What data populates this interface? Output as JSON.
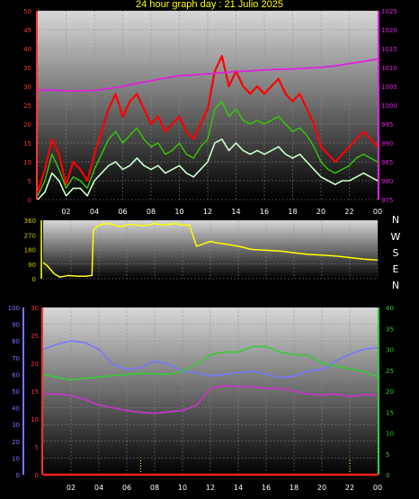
{
  "title": "24 hour graph day : 21 Julio 2025",
  "hour_labels": [
    "02",
    "04",
    "06",
    "08",
    "10",
    "12",
    "14",
    "16",
    "18",
    "20",
    "22",
    "00"
  ],
  "compass_labels": [
    "N",
    "W",
    "S",
    "E",
    "N"
  ],
  "colors": {
    "gust": "#ff0000",
    "wind_avg": "#33cc00",
    "wind": "#ccffcc",
    "pressure": "#dd22dd",
    "direction": "#ffff00",
    "humidity": "#7777ff",
    "temp": "#33cc33",
    "dewpoint": "#cc33cc",
    "rain": "#ff2222",
    "panel_bg_top": "#d8d8d8",
    "panel_bg_bottom": "#000000"
  },
  "chart_data": [
    {
      "type": "line",
      "name": "wind",
      "x": "hours 0-24",
      "ylim_left": [
        0,
        50
      ],
      "ylim_right": [
        975,
        1025
      ],
      "left_ticks": [
        "50",
        "45",
        "40",
        "35",
        "30",
        "25",
        "20",
        "15",
        "10",
        "5",
        "0"
      ],
      "right_ticks": [
        "1025",
        "1020",
        "1015",
        "1010",
        "1005",
        "1000",
        "995",
        "990",
        "985",
        "980",
        "975"
      ],
      "series": [
        {
          "color": "gust",
          "x": [
            0,
            0.5,
            1,
            1.5,
            2,
            2.5,
            3,
            3.5,
            4,
            4.5,
            5,
            5.5,
            6,
            6.5,
            7,
            7.5,
            8,
            8.5,
            9,
            9.5,
            10,
            10.5,
            11,
            11.5,
            12,
            12.5,
            13,
            13.5,
            14,
            14.5,
            15,
            15.5,
            16,
            16.5,
            17,
            17.5,
            18,
            18.5,
            19,
            19.5,
            20,
            20.5,
            21,
            21.5,
            22,
            22.5,
            23,
            23.5,
            24
          ],
          "y": [
            2,
            8,
            16,
            12,
            4,
            10,
            8,
            5,
            12,
            18,
            24,
            28,
            22,
            26,
            28,
            24,
            20,
            22,
            18,
            20,
            22,
            18,
            16,
            20,
            24,
            34,
            38,
            30,
            34,
            30,
            28,
            30,
            28,
            30,
            32,
            28,
            26,
            28,
            24,
            20,
            14,
            12,
            10,
            12,
            14,
            16,
            18,
            16,
            14
          ]
        },
        {
          "color": "wind_avg",
          "x": [
            0,
            0.5,
            1,
            1.5,
            2,
            2.5,
            3,
            3.5,
            4,
            4.5,
            5,
            5.5,
            6,
            6.5,
            7,
            7.5,
            8,
            8.5,
            9,
            9.5,
            10,
            10.5,
            11,
            11.5,
            12,
            12.5,
            13,
            13.5,
            14,
            14.5,
            15,
            15.5,
            16,
            16.5,
            17,
            17.5,
            18,
            18.5,
            19,
            19.5,
            20,
            20.5,
            21,
            21.5,
            22,
            22.5,
            23,
            23.5,
            24
          ],
          "y": [
            1,
            5,
            12,
            8,
            3,
            6,
            5,
            3,
            8,
            12,
            16,
            18,
            15,
            17,
            19,
            16,
            14,
            15,
            12,
            13,
            15,
            12,
            11,
            14,
            16,
            24,
            26,
            22,
            24,
            21,
            20,
            21,
            20,
            21,
            22,
            20,
            18,
            19,
            17,
            14,
            10,
            8,
            7,
            8,
            9,
            11,
            12,
            11,
            10
          ]
        },
        {
          "color": "wind",
          "x": [
            0,
            0.5,
            1,
            1.5,
            2,
            2.5,
            3,
            3.5,
            4,
            4.5,
            5,
            5.5,
            6,
            6.5,
            7,
            7.5,
            8,
            8.5,
            9,
            9.5,
            10,
            10.5,
            11,
            11.5,
            12,
            12.5,
            13,
            13.5,
            14,
            14.5,
            15,
            15.5,
            16,
            16.5,
            17,
            17.5,
            18,
            18.5,
            19,
            19.5,
            20,
            20.5,
            21,
            21.5,
            22,
            22.5,
            23,
            23.5,
            24
          ],
          "y": [
            0,
            2,
            7,
            5,
            1,
            3,
            3,
            1,
            5,
            7,
            9,
            10,
            8,
            9,
            11,
            9,
            8,
            9,
            7,
            8,
            9,
            7,
            6,
            8,
            10,
            15,
            16,
            13,
            15,
            13,
            12,
            13,
            12,
            13,
            14,
            12,
            11,
            12,
            10,
            8,
            6,
            5,
            4,
            5,
            5,
            6,
            7,
            6,
            5
          ]
        },
        {
          "color": "pressure",
          "x": [
            0,
            1,
            2,
            3,
            4,
            5,
            6,
            7,
            8,
            9,
            10,
            11,
            12,
            13,
            14,
            15,
            16,
            17,
            18,
            19,
            20,
            21,
            22,
            23,
            24
          ],
          "y": [
            1004,
            1004,
            1003.8,
            1003.8,
            1003.9,
            1004.4,
            1005,
            1005.8,
            1006.5,
            1007.2,
            1007.8,
            1008,
            1008.3,
            1008.6,
            1008.9,
            1009.1,
            1009.3,
            1009.5,
            1009.6,
            1009.8,
            1010,
            1010.4,
            1011,
            1011.6,
            1012.2
          ]
        }
      ]
    },
    {
      "type": "line",
      "name": "wind direction",
      "ylim": [
        0,
        360
      ],
      "left_ticks": [
        "360",
        "270",
        "180",
        "90",
        "0"
      ],
      "series": [
        {
          "color": "direction",
          "x": [
            0,
            0.3,
            0.8,
            1.2,
            1.8,
            2.5,
            3,
            3.5,
            3.6,
            4,
            4.5,
            5,
            5.5,
            6,
            6.5,
            7,
            7.5,
            8,
            8.5,
            9,
            9.5,
            10,
            10.5,
            11,
            11.5,
            12,
            12.5,
            13,
            14,
            15,
            16,
            17,
            18,
            19,
            20,
            21,
            22,
            23,
            24
          ],
          "y": [
            100,
            80,
            30,
            10,
            20,
            15,
            15,
            20,
            300,
            330,
            340,
            335,
            320,
            330,
            335,
            325,
            330,
            340,
            330,
            335,
            340,
            330,
            330,
            200,
            215,
            230,
            220,
            215,
            200,
            180,
            175,
            170,
            160,
            150,
            145,
            140,
            130,
            120,
            115
          ]
        }
      ]
    },
    {
      "type": "line",
      "name": "temperature humidity rain",
      "ylim_humidity": [
        0,
        100
      ],
      "ylim_temp": [
        0,
        30
      ],
      "ylim_right": [
        0,
        40
      ],
      "humidity_ticks": [
        "100",
        "90",
        "80",
        "70",
        "60",
        "50",
        "40",
        "30",
        "20",
        "10",
        "0"
      ],
      "temp_ticks": [
        "30",
        "25",
        "20",
        "15",
        "10",
        "5",
        "0"
      ],
      "right_ticks": [
        "40",
        "35",
        "30",
        "25",
        "20",
        "15",
        "10",
        "5",
        "0"
      ],
      "series": [
        {
          "color": "humidity",
          "x": [
            0,
            1,
            2,
            3,
            4,
            5,
            6,
            7,
            8,
            9,
            10,
            11,
            12,
            13,
            14,
            15,
            16,
            17,
            18,
            19,
            20,
            21,
            22,
            23,
            24
          ],
          "y": [
            75,
            78,
            80,
            79,
            75,
            66,
            63,
            64,
            68,
            66,
            62,
            61,
            59,
            60,
            61,
            62,
            60,
            58,
            59,
            62,
            63,
            68,
            72,
            75,
            76
          ]
        },
        {
          "color": "temp",
          "x": [
            0,
            1,
            2,
            3,
            4,
            5,
            6,
            7,
            8,
            9,
            10,
            11,
            12,
            13,
            14,
            15,
            16,
            17,
            18,
            19,
            20,
            21,
            22,
            23,
            24
          ],
          "y": [
            18,
            17.5,
            17,
            17.3,
            17.5,
            17.8,
            18,
            18.2,
            18.1,
            18,
            18.6,
            19.8,
            21.5,
            22,
            22,
            23,
            23,
            22,
            21.5,
            21.5,
            20,
            19.5,
            19,
            18.5,
            17.5
          ]
        },
        {
          "color": "dewpoint",
          "x": [
            0,
            1,
            2,
            3,
            4,
            5,
            6,
            7,
            8,
            9,
            10,
            11,
            12,
            13,
            14,
            15,
            16,
            17,
            18,
            19,
            20,
            21,
            22,
            23,
            24
          ],
          "y": [
            14.5,
            14.5,
            14.2,
            13.5,
            12.5,
            12,
            11.5,
            11.2,
            11,
            11.3,
            11.5,
            12.5,
            15.5,
            16,
            15.8,
            15.8,
            15.5,
            15.5,
            15,
            14.5,
            14.3,
            14.5,
            14,
            14.4,
            14.2
          ]
        },
        {
          "color": "rain",
          "x": [
            0,
            24
          ],
          "y": [
            0,
            0
          ]
        }
      ]
    }
  ]
}
